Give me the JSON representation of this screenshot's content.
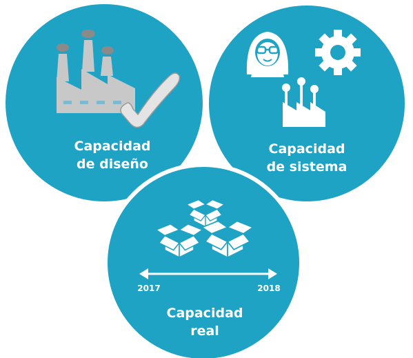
{
  "circles": {
    "design": {
      "line1": "Capacidad",
      "line2": "de diseño",
      "icons": [
        "factory-icon",
        "checkmark-icon"
      ]
    },
    "system": {
      "line1": "Capacidad",
      "line2": "de sistema",
      "icons": [
        "worker-avatar-icon",
        "gear-icon",
        "small-factory-icon"
      ]
    },
    "real": {
      "line1": "Capacidad",
      "line2": "real",
      "icons": [
        "open-box-icon",
        "timeline-arrow-icon"
      ],
      "timeline": {
        "start": "2017",
        "end": "2018"
      }
    }
  },
  "colors": {
    "circle_fill": "#1fa3c5",
    "circle_border": "#ffffff",
    "icon_white": "#ffffff",
    "factory_gray": "#c8c8c8",
    "smoke_gray": "#8a8a8a",
    "window_blue": "#7fb9cf"
  }
}
